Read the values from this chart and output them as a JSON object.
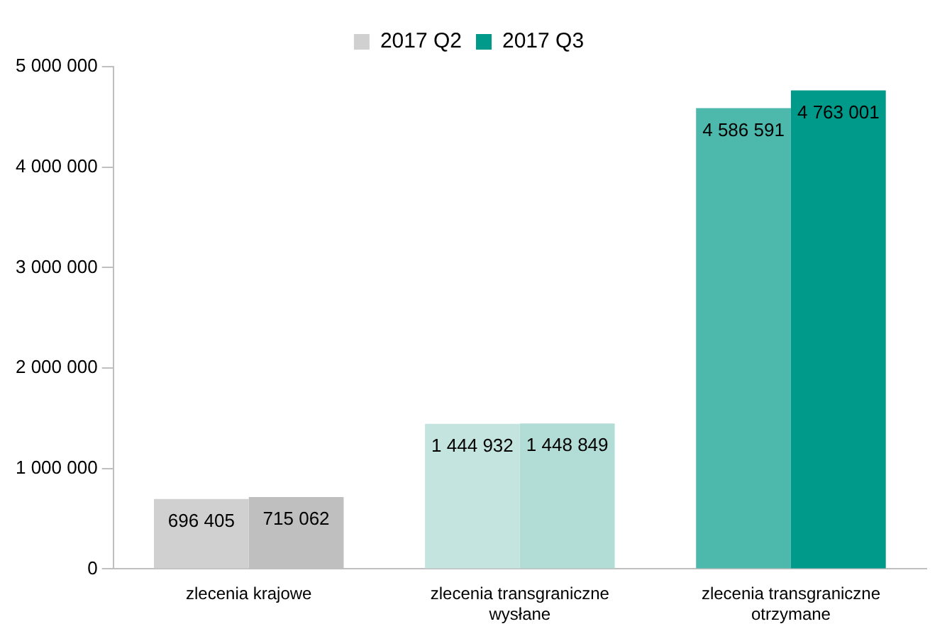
{
  "chart_data": {
    "type": "bar",
    "categories": [
      "zlecenia krajowe",
      "zlecenia transgraniczne wysłane",
      "zlecenia transgraniczne otrzymane"
    ],
    "series": [
      {
        "name": "2017 Q2",
        "color": "#d0d0d0",
        "colors": [
          "#d0d0d0",
          "#c4e4df",
          "#4db8ac"
        ],
        "values": [
          696405,
          1444932,
          4586591
        ]
      },
      {
        "name": "2017 Q3",
        "color": "#009a8a",
        "colors": [
          "#bfbfbf",
          "#b2ddd6",
          "#009a8a"
        ],
        "values": [
          715062,
          1448849,
          4763001
        ]
      }
    ],
    "ylim": [
      0,
      5000000
    ],
    "yticks": [
      {
        "value": 0,
        "label": "0"
      },
      {
        "value": 1000000,
        "label": "1 000 000"
      },
      {
        "value": 2000000,
        "label": "2 000 000"
      },
      {
        "value": 3000000,
        "label": "3 000 000"
      },
      {
        "value": 4000000,
        "label": "4 000 000"
      },
      {
        "value": 5000000,
        "label": "5 000 000"
      }
    ],
    "grid": false,
    "legend": "top",
    "data_labels": true
  }
}
